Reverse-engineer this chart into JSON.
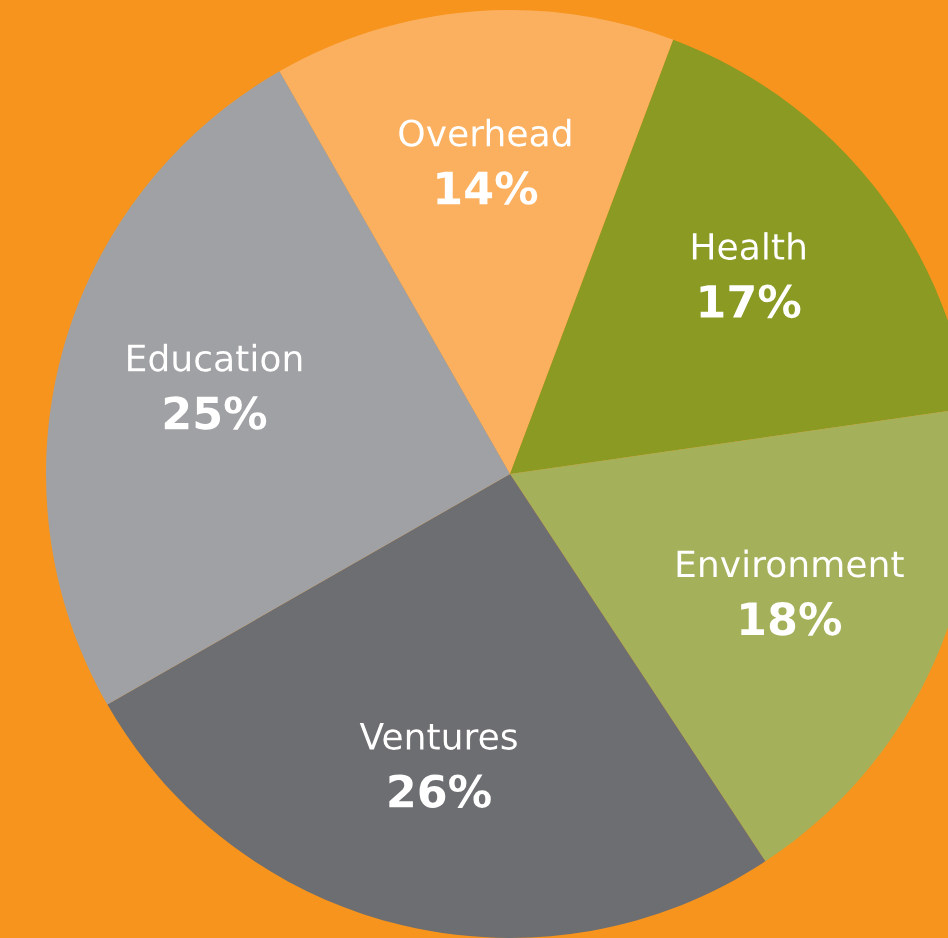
{
  "chart_data": {
    "type": "pie",
    "categories": [
      "Overhead",
      "Health",
      "Environment",
      "Ventures",
      "Education"
    ],
    "values": [
      14,
      17,
      18,
      26,
      25
    ],
    "colors": [
      "#fbb060",
      "#8a9a22",
      "#a5b05a",
      "#6d6e71",
      "#a0a1a4"
    ],
    "value_labels": [
      "14%",
      "17%",
      "18%",
      "26%",
      "25%"
    ]
  }
}
